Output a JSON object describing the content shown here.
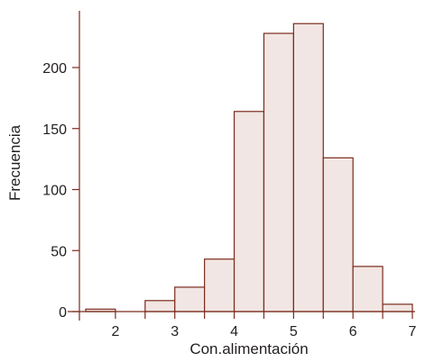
{
  "chart_data": {
    "type": "bar",
    "histogram": true,
    "xlabel": "Con.alimentación",
    "ylabel": "Frecuencia",
    "bin_width": 0.5,
    "bins": [
      {
        "start": 1.5,
        "end": 2.0,
        "value": 2
      },
      {
        "start": 2.0,
        "end": 2.5,
        "value": 0
      },
      {
        "start": 2.5,
        "end": 3.0,
        "value": 9
      },
      {
        "start": 3.0,
        "end": 3.5,
        "value": 20
      },
      {
        "start": 3.5,
        "end": 4.0,
        "value": 43
      },
      {
        "start": 4.0,
        "end": 4.5,
        "value": 164
      },
      {
        "start": 4.5,
        "end": 5.0,
        "value": 228
      },
      {
        "start": 5.0,
        "end": 5.5,
        "value": 236
      },
      {
        "start": 5.5,
        "end": 6.0,
        "value": 126
      },
      {
        "start": 6.0,
        "end": 6.5,
        "value": 37
      },
      {
        "start": 6.5,
        "end": 7.0,
        "value": 6
      }
    ],
    "xticks": [
      "2",
      "3",
      "4",
      "5",
      "6",
      "7"
    ],
    "yticks": [
      "0",
      "50",
      "100",
      "150",
      "200"
    ],
    "xlim": [
      1.5,
      7.0
    ],
    "ylim": [
      0,
      250
    ],
    "grid": false,
    "colors": {
      "bar_fill": "#f1e6e3",
      "bar_stroke": "#7a2a1c",
      "axis": "#7a2a1c"
    }
  }
}
